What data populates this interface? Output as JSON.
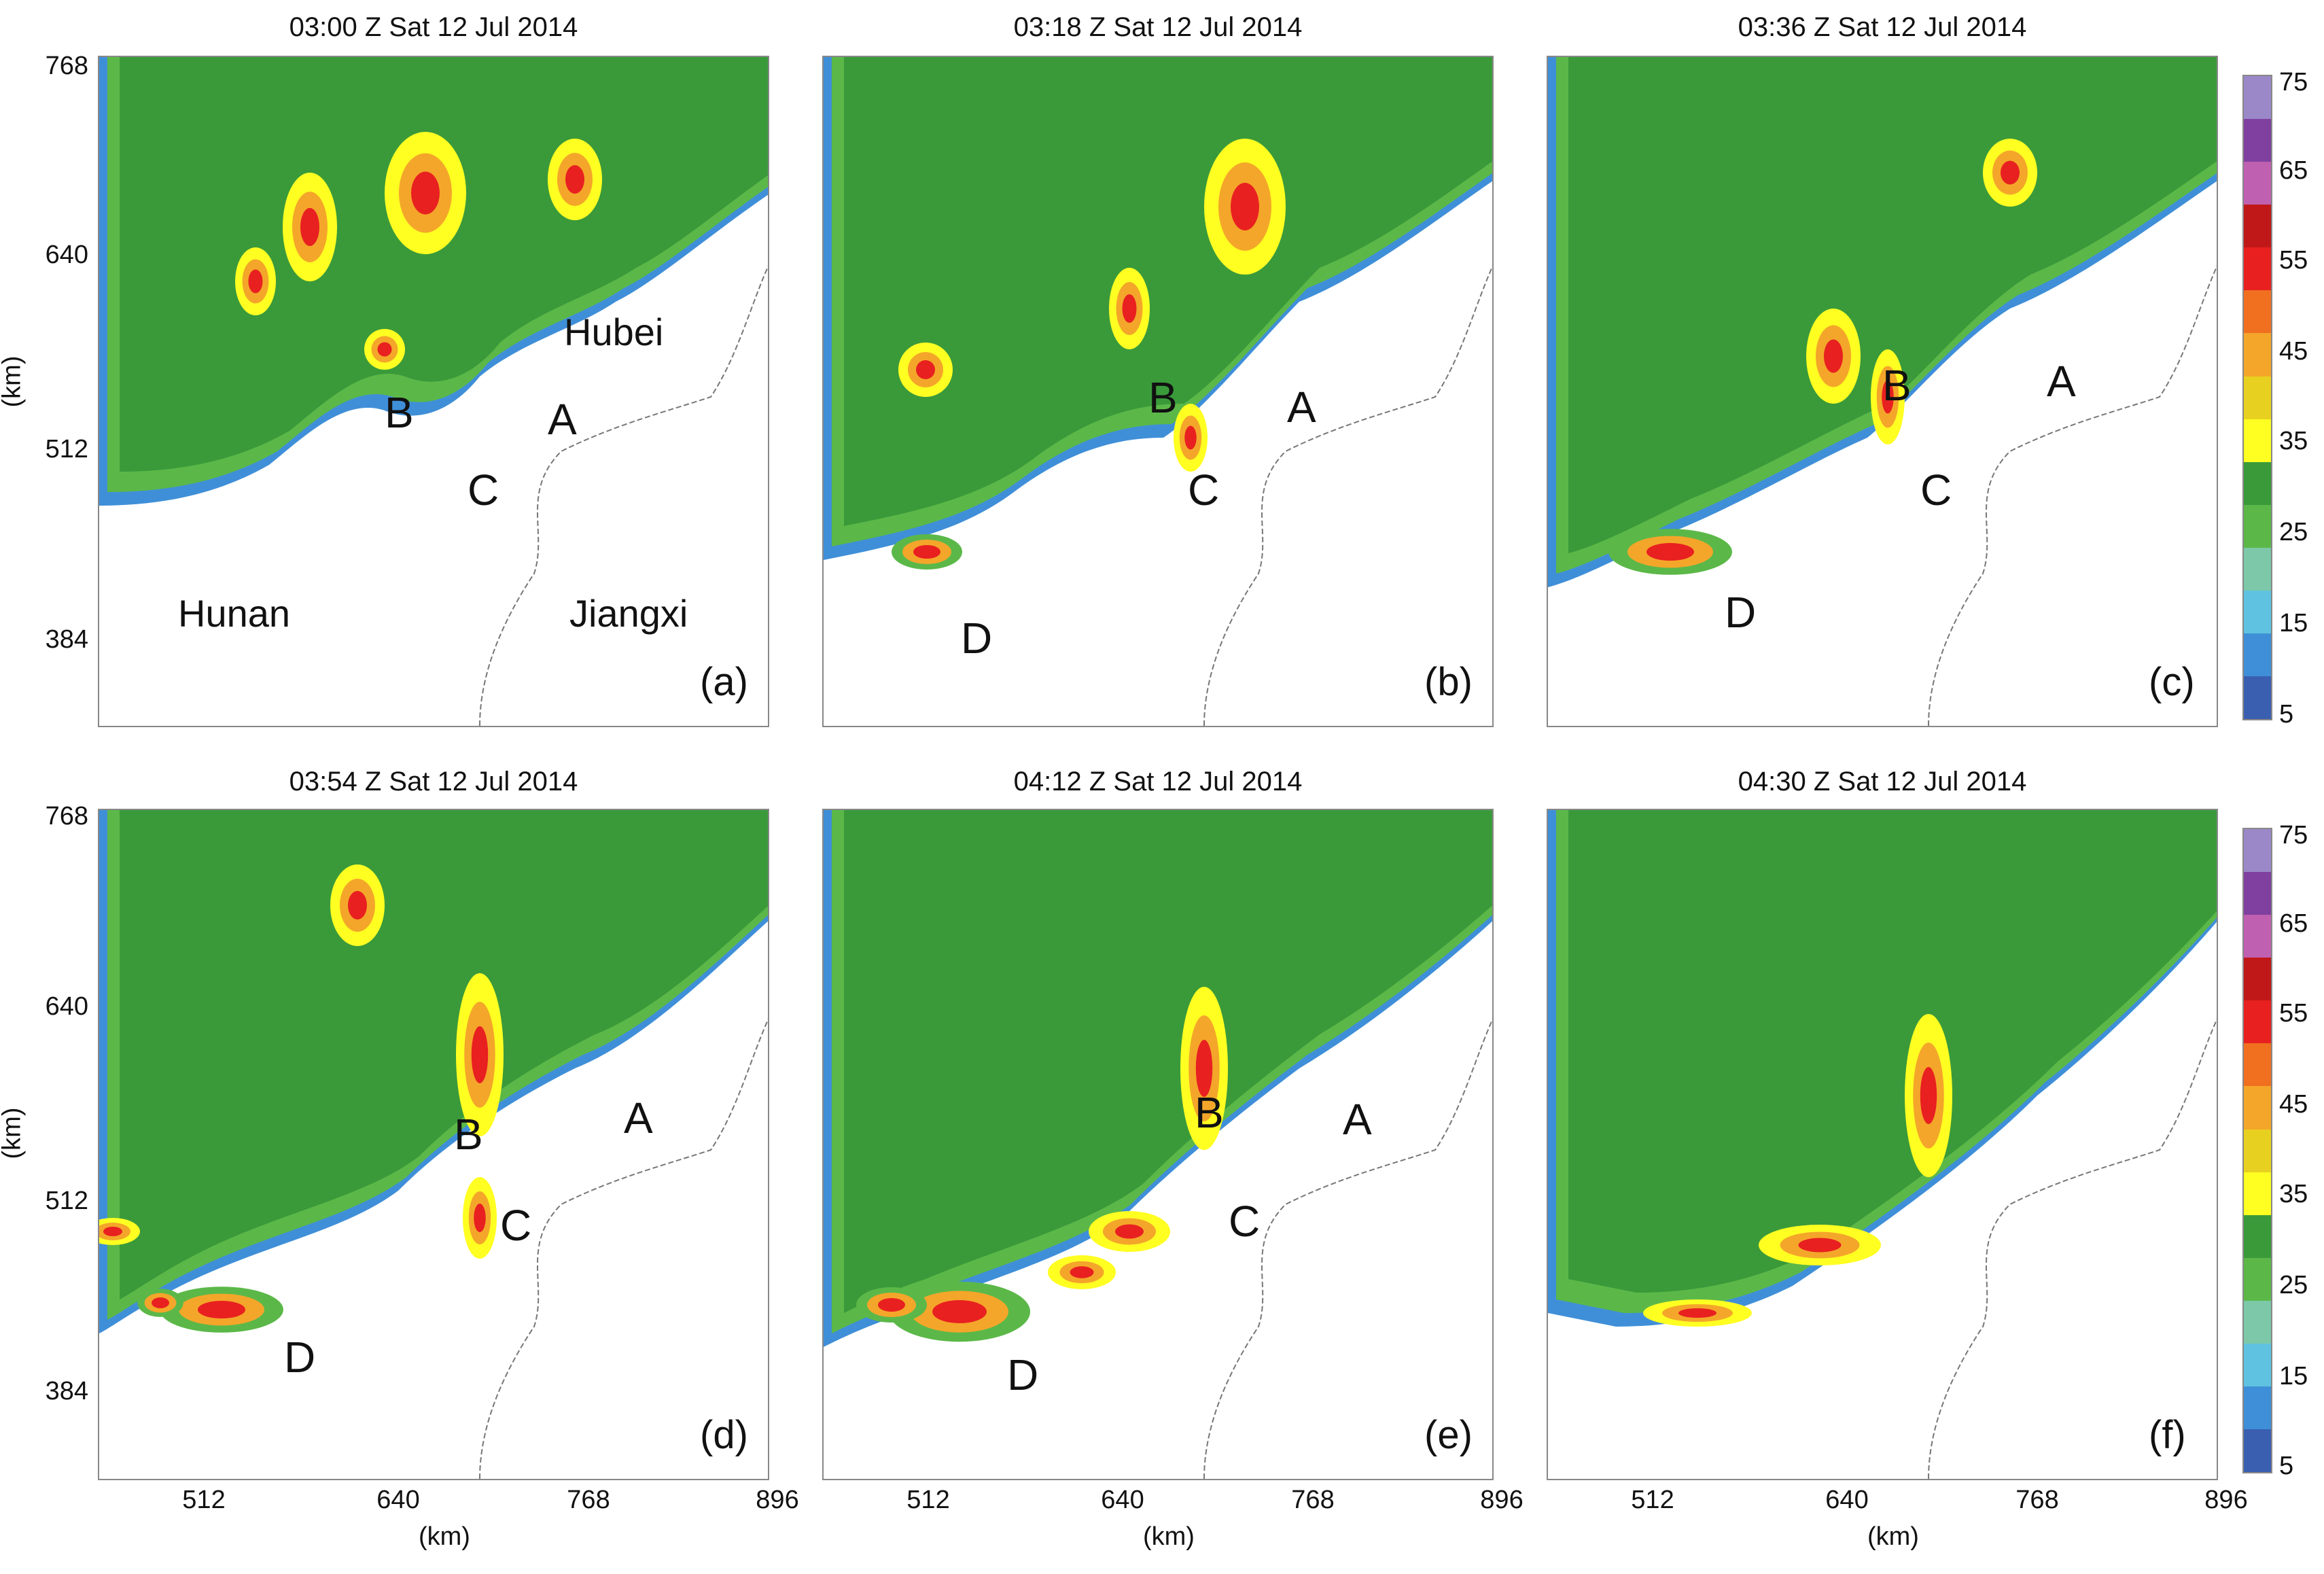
{
  "panels": [
    {
      "title": "03:00 Z Sat 12 Jul 2014",
      "label": "(a)"
    },
    {
      "title": "03:18 Z Sat 12 Jul 2014",
      "label": "(b)"
    },
    {
      "title": "03:36 Z Sat 12 Jul 2014",
      "label": "(c)"
    },
    {
      "title": "03:54 Z Sat 12 Jul 2014",
      "label": "(d)"
    },
    {
      "title": "04:12 Z Sat 12 Jul 2014",
      "label": "(e)"
    },
    {
      "title": "04:30 Z Sat 12 Jul 2014",
      "label": "(f)"
    }
  ],
  "axes": {
    "y_ticks": [
      "768",
      "640",
      "512",
      "384"
    ],
    "x_ticks": [
      "512",
      "640",
      "768",
      "896"
    ],
    "y_label": "(km)",
    "x_label": "(km)"
  },
  "regions": {
    "hubei": "Hubei",
    "hunan": "Hunan",
    "jiangxi": "Jiangxi"
  },
  "cells": {
    "a": "A",
    "b": "B",
    "c": "C",
    "d": "D"
  },
  "colorbar": {
    "ticks": [
      "75",
      "65",
      "55",
      "45",
      "35",
      "25",
      "15",
      "5"
    ],
    "colors": [
      "#3a5fb0",
      "#3f8fd8",
      "#5fc2e0",
      "#7cc8a8",
      "#5bb848",
      "#3a9a3a",
      "#ffff22",
      "#e8d020",
      "#f4a62a",
      "#f07020",
      "#e82020",
      "#c01818",
      "#c060b0",
      "#8040a0",
      "#9a88c8"
    ]
  },
  "colors": {
    "no_echo": "#ffffff",
    "border_line": "#777777"
  }
}
